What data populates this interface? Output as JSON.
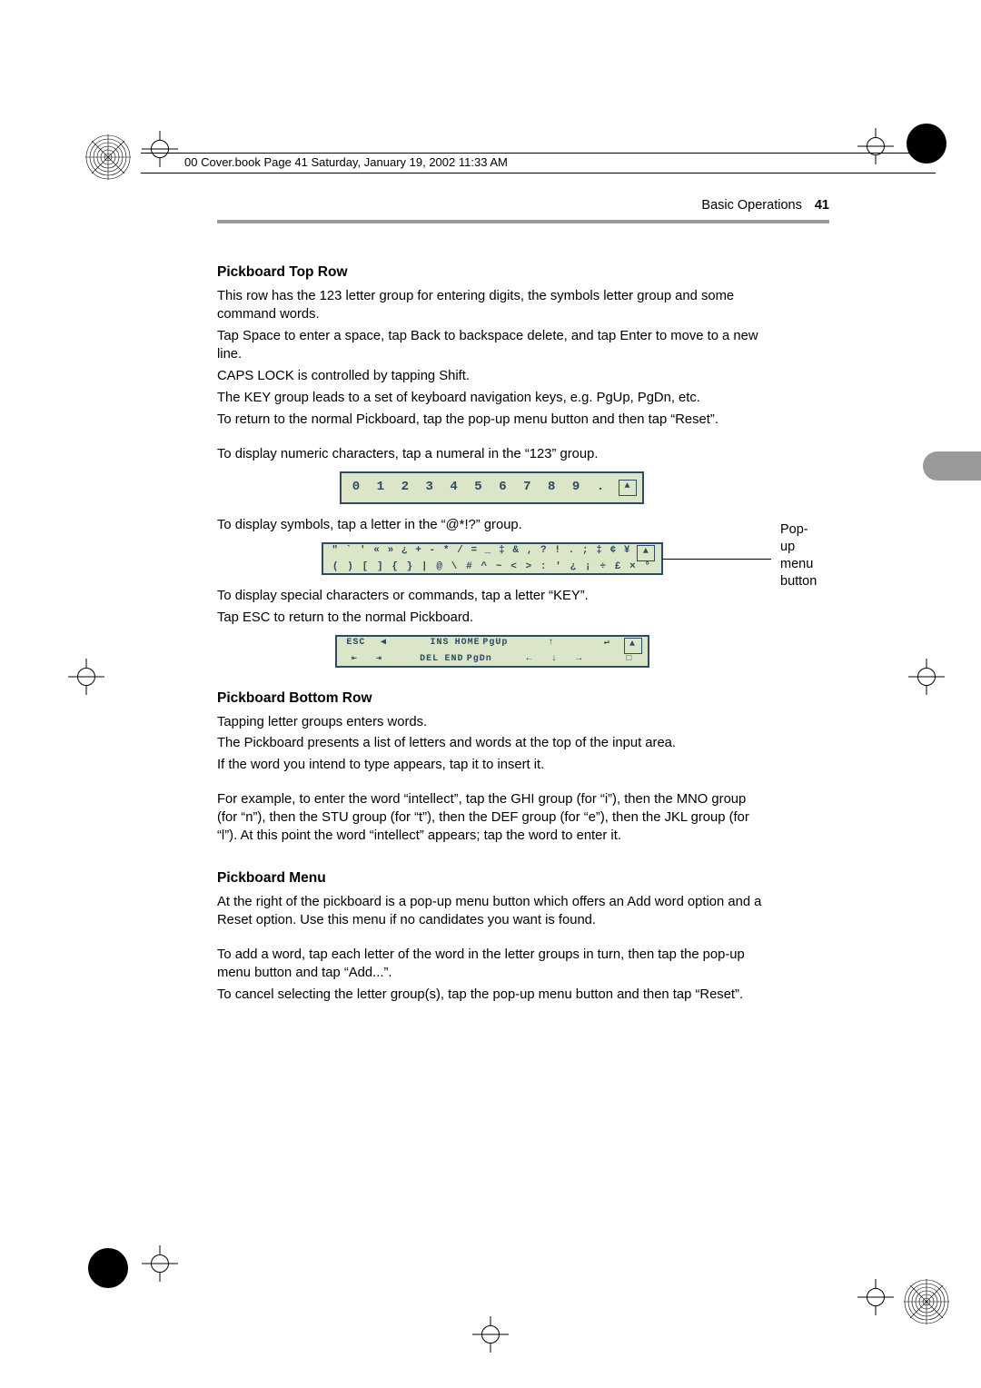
{
  "meta": {
    "headerText": "00 Cover.book  Page 41  Saturday, January 19, 2002  11:33 AM",
    "sectionTitle": "Basic Operations",
    "pageNumber": "41"
  },
  "sections": {
    "topRow": {
      "title": "Pickboard Top Row",
      "p1": "This row has the 123 letter group for entering digits, the symbols letter group and some command words.",
      "p2": "Tap Space to enter a space, tap Back to backspace delete, and tap Enter to move to a new line.",
      "p3": "CAPS LOCK is controlled by tapping Shift.",
      "p4": "The KEY group leads to a set of keyboard navigation keys, e.g. PgUp, PgDn, etc.",
      "p5": "To return to the normal Pickboard, tap the pop-up menu button and then tap “Reset”.",
      "p6": "To display numeric characters, tap a numeral in the “123” group.",
      "p7": "To display symbols, tap a letter in the “@*!?” group.",
      "p8": "To display special characters or commands, tap a letter “KEY”.",
      "p9": "Tap ESC to return to the normal Pickboard."
    },
    "bottomRow": {
      "title": "Pickboard Bottom Row",
      "p1": "Tapping letter groups enters words.",
      "p2": "The Pickboard presents a list of letters and words at the top of the input area.",
      "p3": "If the word you intend to type appears, tap it to insert it.",
      "p4": "For example, to enter the word “intellect”, tap the GHI group (for “i”), then the MNO group (for “n”), then the STU group (for “t”), then the DEF group (for “e”), then the JKL group (for “l”). At this point the word “intellect” appears; tap the word to enter it."
    },
    "menu": {
      "title": "Pickboard Menu",
      "p1": "At the right of the pickboard is a pop-up menu button which offers an Add word option and a Reset option. Use this menu if no candidates you want is found.",
      "p2": "To add a word, tap each letter of the word in the letter groups in turn, then tap the pop-up menu button and tap “Add...”.",
      "p3": "To cancel selecting the letter group(s), tap the pop-up menu button and then tap “Reset”."
    }
  },
  "figures": {
    "numeric": {
      "digits": [
        "0",
        "1",
        "2",
        "3",
        "4",
        "5",
        "6",
        "7",
        "8",
        "9",
        "."
      ]
    },
    "symbols": {
      "row1": [
        "\"",
        "`",
        "'",
        "«",
        "»",
        "¿",
        "+",
        "-",
        "*",
        "/",
        "=",
        "_",
        "‡",
        "&",
        ",",
        "?",
        "!",
        ".",
        ";",
        "‡",
        "¢",
        "¥"
      ],
      "row2": [
        "(",
        ")",
        "[",
        "]",
        "{",
        "}",
        "|",
        "@",
        "\\",
        "#",
        "^",
        "~",
        "<",
        ">",
        ":",
        "'",
        "¿",
        "¡",
        "÷",
        "£",
        "×",
        "°"
      ]
    },
    "keys": {
      "row1": [
        "ESC",
        "◀",
        "",
        "INS",
        "HOME",
        "PgUp",
        "",
        "↑",
        "",
        "↵"
      ],
      "row2": [
        "⇤",
        "⇥",
        "",
        "DEL",
        "END",
        "PgDn",
        "",
        "←",
        "↓",
        "→",
        "",
        "□"
      ]
    }
  },
  "annotation": {
    "label1": "Pop-up menu",
    "label2": "button"
  },
  "colors": {
    "figBorder": "#2d4a66",
    "figBg": "#dbe5c8",
    "ruleGray": "#999999",
    "tabGray": "#9a9a9a"
  }
}
